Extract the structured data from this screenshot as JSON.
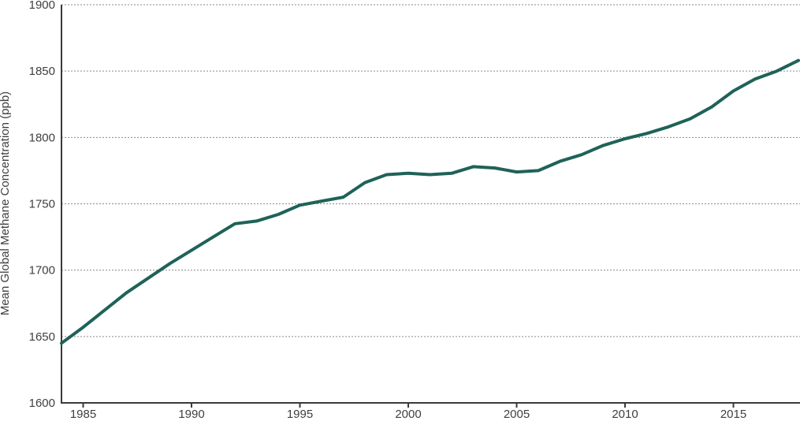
{
  "chart_data": {
    "type": "line",
    "title": "",
    "xlabel": "",
    "ylabel": "Mean Global Methane Concentration (ppb)",
    "xlim": [
      1984,
      2018
    ],
    "ylim": [
      1600,
      1900
    ],
    "x_ticks": [
      1985,
      1990,
      1995,
      2000,
      2005,
      2010,
      2015
    ],
    "y_ticks": [
      1600,
      1650,
      1700,
      1750,
      1800,
      1850,
      1900
    ],
    "grid": "horizontal dashed",
    "series": [
      {
        "color": "#1f6258",
        "x": [
          1984,
          1985,
          1986,
          1987,
          1988,
          1989,
          1990,
          1991,
          1992,
          1993,
          1994,
          1995,
          1996,
          1997,
          1998,
          1999,
          2000,
          2001,
          2002,
          2003,
          2004,
          2005,
          2006,
          2007,
          2008,
          2009,
          2010,
          2011,
          2012,
          2013,
          2014,
          2015,
          2016,
          2017,
          2018
        ],
        "values": [
          1645,
          1657,
          1670,
          1683,
          1694,
          1705,
          1715,
          1725,
          1735,
          1737,
          1742,
          1749,
          1752,
          1755,
          1766,
          1772,
          1773,
          1772,
          1773,
          1778,
          1777,
          1774,
          1775,
          1782,
          1787,
          1794,
          1799,
          1803,
          1808,
          1814,
          1823,
          1835,
          1844,
          1850,
          1858
        ]
      }
    ]
  }
}
